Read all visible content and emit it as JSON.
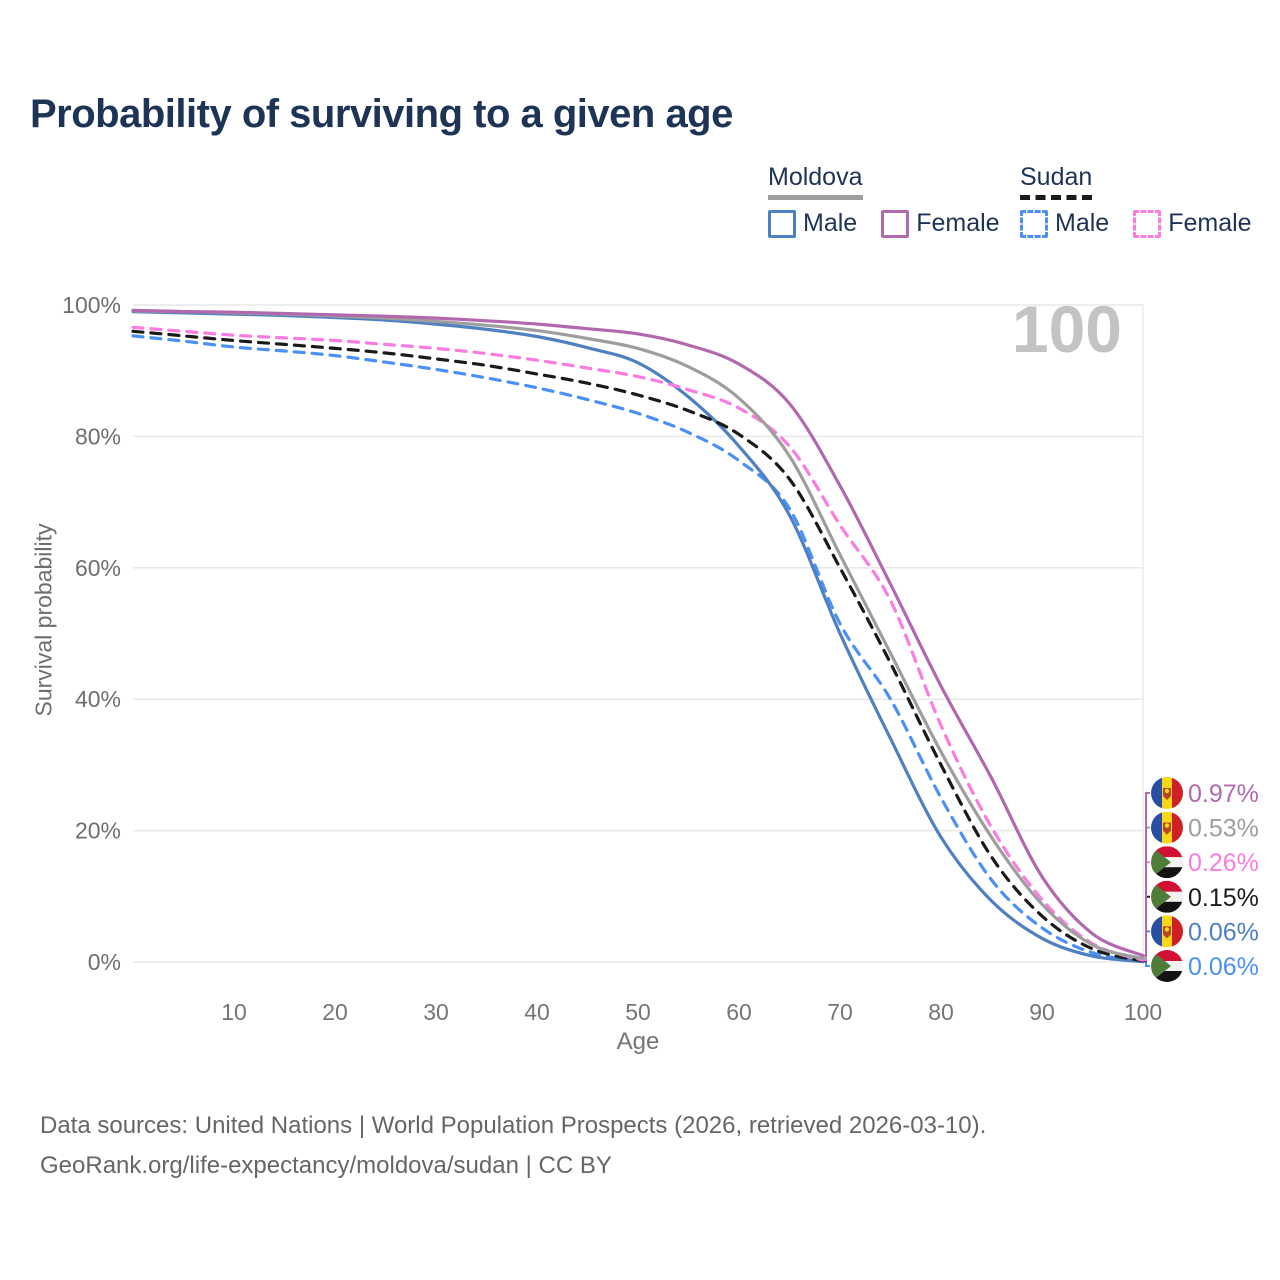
{
  "title": "Probability of surviving to a given age",
  "watermark": "100",
  "legend": {
    "groups": [
      {
        "label": "Moldova",
        "line": {
          "style": "solid",
          "color": "#9e9e9e"
        },
        "items": [
          {
            "label": "Male",
            "color": "#4e80c2",
            "dashed": false
          },
          {
            "label": "Female",
            "color": "#b168af",
            "dashed": false
          }
        ]
      },
      {
        "label": "Sudan",
        "line": {
          "style": "dashed",
          "color": "#1a1a1a"
        },
        "items": [
          {
            "label": "Male",
            "color": "#4b90f5",
            "dashed": true
          },
          {
            "label": "Female",
            "color": "#fb7ce0",
            "dashed": true
          }
        ]
      }
    ]
  },
  "chart_data": {
    "type": "line",
    "title": "Probability of surviving to a given age",
    "xlabel": "Age",
    "ylabel": "Survival probability",
    "xlim": [
      0,
      100
    ],
    "ylim": [
      0,
      100
    ],
    "x_ticks": [
      10,
      20,
      30,
      40,
      50,
      60,
      70,
      80,
      90,
      100
    ],
    "y_ticks": [
      0,
      20,
      40,
      60,
      80,
      100
    ],
    "y_tick_labels": [
      "0%",
      "20%",
      "40%",
      "60%",
      "80%",
      "100%"
    ],
    "grid": "horizontal",
    "legend_position": "top-right",
    "x": [
      0,
      5,
      10,
      15,
      20,
      25,
      30,
      35,
      40,
      45,
      50,
      55,
      60,
      65,
      70,
      75,
      80,
      85,
      90,
      95,
      100
    ],
    "series": [
      {
        "name": "Moldova Female",
        "country": "Moldova",
        "sex": "Female",
        "color": "#b168af",
        "dashed": false,
        "flag": "moldova",
        "end_label": "0.97%",
        "values": [
          99.2,
          99.0,
          98.9,
          98.7,
          98.5,
          98.3,
          98.0,
          97.6,
          97.1,
          96.4,
          95.6,
          93.9,
          91.0,
          85.0,
          72.5,
          57.5,
          42.0,
          28.0,
          13.0,
          4.3,
          0.97
        ]
      },
      {
        "name": "Moldova (both sexes)",
        "country": "Moldova",
        "sex": "Both",
        "color": "#9e9e9e",
        "dashed": false,
        "flag": "moldova",
        "end_label": "0.53%",
        "values": [
          99.1,
          99.0,
          98.8,
          98.6,
          98.3,
          98.0,
          97.5,
          96.9,
          96.1,
          94.9,
          93.4,
          90.6,
          85.8,
          77.0,
          62.0,
          47.0,
          32.0,
          19.0,
          8.8,
          2.6,
          0.53
        ]
      },
      {
        "name": "Sudan Female",
        "country": "Sudan",
        "sex": "Female",
        "color": "#fb7ce0",
        "dashed": true,
        "flag": "sudan",
        "end_label": "0.26%",
        "values": [
          96.6,
          96.0,
          95.4,
          95.0,
          94.6,
          94.0,
          93.4,
          92.6,
          91.6,
          90.4,
          89.1,
          87.1,
          84.3,
          78.5,
          66.5,
          55.0,
          36.0,
          20.5,
          9.5,
          2.8,
          0.26
        ]
      },
      {
        "name": "Sudan (both sexes)",
        "country": "Sudan",
        "sex": "Both",
        "color": "#1a1a1a",
        "dashed": true,
        "flag": "sudan",
        "end_label": "0.15%",
        "values": [
          96.0,
          95.3,
          94.6,
          94.0,
          93.4,
          92.7,
          91.8,
          90.8,
          89.5,
          88.1,
          86.3,
          83.9,
          80.3,
          73.5,
          60.0,
          45.5,
          30.0,
          16.0,
          7.0,
          2.0,
          0.15
        ]
      },
      {
        "name": "Moldova Male",
        "country": "Moldova",
        "sex": "Male",
        "color": "#4e80c2",
        "dashed": false,
        "flag": "moldova",
        "end_label": "0.06%",
        "values": [
          99.0,
          98.8,
          98.6,
          98.4,
          98.1,
          97.7,
          97.1,
          96.3,
          95.2,
          93.5,
          91.2,
          86.0,
          78.5,
          68.0,
          50.0,
          34.0,
          19.0,
          9.3,
          3.6,
          0.9,
          0.06
        ]
      },
      {
        "name": "Sudan Male",
        "country": "Sudan",
        "sex": "Male",
        "color": "#4b90f5",
        "dashed": true,
        "flag": "sudan",
        "end_label": "0.06%",
        "values": [
          95.3,
          94.5,
          93.6,
          93.0,
          92.3,
          91.3,
          90.2,
          88.9,
          87.4,
          85.6,
          83.5,
          80.6,
          76.3,
          69.0,
          51.5,
          40.0,
          25.0,
          12.5,
          5.2,
          1.4,
          0.06
        ]
      }
    ]
  },
  "footer": {
    "line1": "Data sources: United Nations | World Population Prospects (2026, retrieved 2026-03-10).",
    "line2": "GeoRank.org/life-expectancy/moldova/sudan | CC BY"
  }
}
